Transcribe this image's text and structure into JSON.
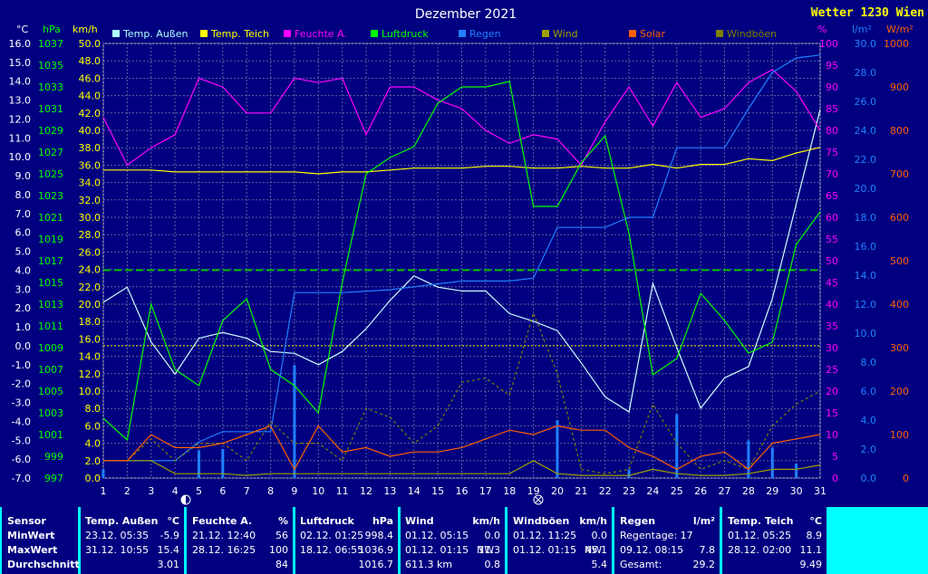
{
  "header": {
    "title": "Dezember 2021",
    "station": "Wetter 1230 Wien",
    "left_units": [
      "°C",
      "hPa",
      "km/h"
    ],
    "right_units": [
      "%",
      "l/m²",
      "W/m²"
    ]
  },
  "legend": [
    {
      "label": "Temp. Außen",
      "color": "#b0ffff"
    },
    {
      "label": "Temp. Teich",
      "color": "#ffff00"
    },
    {
      "label": "Feuchte A.",
      "color": "#ff00ff"
    },
    {
      "label": "Luftdruck",
      "color": "#00ff00"
    },
    {
      "label": "Regen",
      "color": "#2080ff"
    },
    {
      "label": "Wind",
      "color": "#a0a000"
    },
    {
      "label": "Solar",
      "color": "#ff6000"
    },
    {
      "label": "Windböen",
      "color": "#808000"
    }
  ],
  "chart_data": {
    "type": "line",
    "x": [
      1,
      2,
      3,
      4,
      5,
      6,
      7,
      8,
      9,
      10,
      11,
      12,
      13,
      14,
      15,
      16,
      17,
      18,
      19,
      20,
      21,
      22,
      23,
      24,
      25,
      26,
      27,
      28,
      29,
      30,
      31
    ],
    "axes": {
      "temp_c": {
        "range": [
          -7.0,
          16.0
        ],
        "ticks": [
          "16.0",
          "15.0",
          "14.0",
          "13.0",
          "12.0",
          "11.0",
          "10.0",
          "9.0",
          "8.0",
          "7.0",
          "6.0",
          "5.0",
          "4.0",
          "3.0",
          "2.0",
          "1.0",
          "0.0",
          "-1.0",
          "-2.0",
          "-3.0",
          "-4.0",
          "-5.0",
          "-6.0",
          "-7.0"
        ]
      },
      "pressure_hpa": {
        "range": [
          997,
          1037
        ],
        "ticks": [
          "1037",
          "1035",
          "1033",
          "1031",
          "1029",
          "1027",
          "1025",
          "1023",
          "1021",
          "1019",
          "1017",
          "1015",
          "1013",
          "1011",
          "1009",
          "1007",
          "1005",
          "1003",
          "1001",
          "999",
          "997"
        ]
      },
      "wind_kmh": {
        "range": [
          0,
          50
        ],
        "ticks": [
          "50.0",
          "48.0",
          "46.0",
          "44.0",
          "42.0",
          "40.0",
          "38.0",
          "36.0",
          "34.0",
          "32.0",
          "30.0",
          "28.0",
          "26.0",
          "24.0",
          "22.0",
          "20.0",
          "18.0",
          "16.0",
          "14.0",
          "12.0",
          "10.0",
          "8.0",
          "6.0",
          "4.0",
          "2.0",
          "0.0"
        ]
      },
      "humidity_pct": {
        "range": [
          0,
          100
        ],
        "ticks": [
          "100",
          "95",
          "90",
          "85",
          "80",
          "75",
          "70",
          "65",
          "60",
          "55",
          "50",
          "45",
          "40",
          "35",
          "30",
          "25",
          "20",
          "15",
          "10",
          "5",
          "0"
        ]
      },
      "rain_lm2": {
        "range": [
          0,
          30
        ],
        "ticks": [
          "30.0",
          "28.0",
          "26.0",
          "24.0",
          "22.0",
          "20.0",
          "18.0",
          "16.0",
          "14.0",
          "12.0",
          "10.0",
          "8.0",
          "6.0",
          "4.0",
          "2.0",
          "0.0"
        ]
      },
      "solar_wm2": {
        "range": [
          0,
          1000
        ],
        "ticks": [
          "1000",
          "900",
          "800",
          "700",
          "600",
          "500",
          "400",
          "300",
          "200",
          "100",
          "0"
        ]
      }
    },
    "series": [
      {
        "name": "Temp. Außen",
        "axis": "temp_c",
        "color": "#d0ffff",
        "values": [
          2.3,
          3.1,
          0.2,
          -1.5,
          0.4,
          0.7,
          0.4,
          -0.3,
          -0.4,
          -1.0,
          -0.3,
          0.9,
          2.4,
          3.7,
          3.1,
          2.9,
          2.9,
          1.7,
          1.3,
          0.8,
          -0.9,
          -2.7,
          -3.5,
          3.3,
          -0.1,
          -3.3,
          -1.7,
          -1.1,
          2.5,
          7.5,
          12.5
        ]
      },
      {
        "name": "Temp. Teich",
        "axis": "temp_c",
        "color": "#ffff00",
        "values": [
          9.3,
          9.3,
          9.3,
          9.2,
          9.2,
          9.2,
          9.2,
          9.2,
          9.2,
          9.1,
          9.2,
          9.2,
          9.3,
          9.4,
          9.4,
          9.4,
          9.5,
          9.5,
          9.4,
          9.4,
          9.5,
          9.4,
          9.4,
          9.6,
          9.4,
          9.6,
          9.6,
          9.9,
          9.8,
          10.2,
          10.5
        ]
      },
      {
        "name": "Feuchte A.",
        "axis": "humidity_pct",
        "color": "#ff00ff",
        "values": [
          83,
          72,
          76,
          79,
          92,
          90,
          84,
          84,
          92,
          91,
          92,
          79,
          90,
          90,
          87,
          85,
          80,
          77,
          79,
          78,
          72,
          82,
          90,
          81,
          91,
          83,
          85,
          91,
          94,
          89,
          80
        ]
      },
      {
        "name": "Luftdruck",
        "axis": "pressure_hpa",
        "color": "#00ff00",
        "values": [
          1002.5,
          1000.5,
          1013.0,
          1007.0,
          1005.5,
          1011.5,
          1013.5,
          1007.0,
          1005.5,
          1003.0,
          1015.0,
          1025.0,
          1026.5,
          1027.5,
          1031.5,
          1033.0,
          1033.0,
          1033.5,
          1022.0,
          1022.0,
          1026.0,
          1028.5,
          1019.5,
          1006.5,
          1008.0,
          1014.0,
          1011.5,
          1008.5,
          1009.5,
          1018.5,
          1021.5
        ]
      },
      {
        "name": "Regen",
        "axis": "rain_lm2",
        "color": "#2080ff",
        "values": [
          1.2,
          1.2,
          1.2,
          1.2,
          2.5,
          3.2,
          3.2,
          3.2,
          12.8,
          12.8,
          12.8,
          12.9,
          13.0,
          13.2,
          13.4,
          13.6,
          13.6,
          13.6,
          13.8,
          17.3,
          17.3,
          17.3,
          18.0,
          18.0,
          22.8,
          22.8,
          22.8,
          25.5,
          28.0,
          29.0,
          29.2
        ]
      },
      {
        "name": "Wind",
        "axis": "wind_kmh",
        "color": "#a0a000",
        "values": [
          2.0,
          2.0,
          2.0,
          0.5,
          0.5,
          0.5,
          0.3,
          0.5,
          0.5,
          0.5,
          0.5,
          0.5,
          0.5,
          0.5,
          0.5,
          0.5,
          0.5,
          0.5,
          2.0,
          0.5,
          0.3,
          0.3,
          0.3,
          1.0,
          0.5,
          0.3,
          0.3,
          0.5,
          1.0,
          1.0,
          1.5
        ]
      },
      {
        "name": "Windböen",
        "axis": "wind_kmh",
        "color": "#808000",
        "values": [
          2.0,
          2.0,
          4.5,
          2.0,
          4.0,
          4.0,
          2.0,
          6.5,
          4.0,
          4.0,
          2.0,
          8.0,
          7.0,
          4.0,
          6.0,
          11.0,
          11.5,
          9.5,
          19.0,
          12.0,
          1.0,
          0.5,
          1.0,
          8.5,
          4.0,
          1.0,
          2.0,
          1.0,
          6.0,
          8.5,
          10.0
        ]
      },
      {
        "name": "Solar",
        "axis": "solar_wm2",
        "color": "#ff6000",
        "values": [
          40,
          40,
          100,
          70,
          70,
          80,
          100,
          120,
          20,
          120,
          60,
          70,
          50,
          60,
          60,
          70,
          90,
          110,
          100,
          120,
          110,
          110,
          70,
          50,
          20,
          50,
          60,
          20,
          80,
          90,
          100
        ]
      }
    ],
    "rain_daily_bars": [
      0.6,
      0.0,
      0.0,
      0.0,
      1.9,
      2.0,
      0.0,
      0.0,
      7.8,
      0.0,
      0.0,
      0.0,
      0.0,
      0.0,
      0.0,
      0.0,
      0.0,
      0.0,
      0.0,
      4.0,
      0.0,
      0.0,
      0.6,
      0.0,
      4.4,
      0.0,
      0.0,
      2.6,
      2.1,
      1.0,
      0.0
    ],
    "reference_lines": [
      {
        "axis": "temp_c",
        "value": 0.0,
        "color": "#ffff00",
        "style": "dotted"
      },
      {
        "axis": "temp_c",
        "value": 4.0,
        "color": "#00c000",
        "style": "dashed"
      }
    ],
    "grid": true
  },
  "stats": {
    "row_labels": [
      "Sensor",
      "MinWert",
      "MaxWert",
      "Durchschnitt"
    ],
    "temp_aussen": {
      "title": "Temp. Außen",
      "unit": "°C",
      "min_when": "23.12.  05:35",
      "min": "-5.9",
      "max_when": "31.12.  10:55",
      "max": "15.4",
      "avg": "3.01"
    },
    "feuchte": {
      "title": "Feuchte A.",
      "unit": "%",
      "min_when": "21.12.  12:40",
      "min": "56",
      "max_when": "28.12.  16:25",
      "max": "100",
      "avg": "84"
    },
    "luftdruck": {
      "title": "Luftdruck",
      "unit": "hPa",
      "min_when": "02.12.  01:25",
      "min": "998.4",
      "max_when": "18.12.  06:55",
      "max": "1036.9",
      "avg": "1016.7"
    },
    "wind": {
      "title": "Wind",
      "unit": "km/h",
      "min_when": "01.12.  05:15",
      "min": "0.0",
      "max_when": "01.12.  01:15",
      "max_dir": "NW",
      "max": "11.3",
      "avg_label": "611.3 km",
      "avg": "0.8"
    },
    "windboeen": {
      "title": "Windböen",
      "unit": "km/h",
      "min_when": "01.12.  11:25",
      "min": "0.0",
      "max_when": "01.12.  01:15",
      "max_dir": "NW",
      "max": "45.1",
      "avg": "5.4"
    },
    "regen": {
      "title": "Regen",
      "unit": "l/m²",
      "min_label": "Regentage: 17",
      "max_when": "09.12.  08:15",
      "max": "7.8",
      "avg_label": "Gesamt:",
      "avg": "29.2"
    },
    "temp_teich": {
      "title": "Temp. Teich",
      "unit": "°C",
      "min_when": "01.12.  05:25",
      "min": "8.9",
      "max_when": "28.12.  02:00",
      "max": "11.1",
      "avg": "9.49"
    }
  }
}
